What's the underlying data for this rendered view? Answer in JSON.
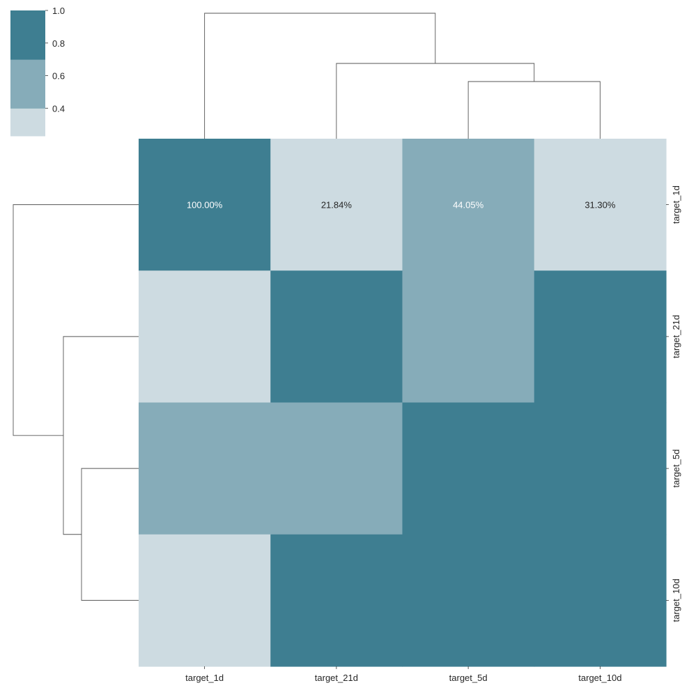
{
  "chart_data": {
    "type": "heatmap",
    "title": "",
    "xlabel": "",
    "ylabel": "",
    "x_categories": [
      "target_1d",
      "target_21d",
      "target_5d",
      "target_10d"
    ],
    "y_categories": [
      "target_1d",
      "target_21d",
      "target_5d",
      "target_10d"
    ],
    "values": [
      [
        1.0,
        0.2184,
        0.4405,
        0.313
      ],
      [
        0.2184,
        1.0,
        0.55,
        0.9
      ],
      [
        0.4405,
        0.55,
        1.0,
        0.9
      ],
      [
        0.313,
        0.9,
        0.9,
        1.0
      ]
    ],
    "cell_labels": [
      [
        "100.00%",
        "21.84%",
        "44.05%",
        "31.30%"
      ],
      [
        "",
        "",
        "",
        ""
      ],
      [
        "",
        "",
        "",
        ""
      ],
      [
        "",
        "",
        "",
        ""
      ]
    ],
    "colorbar": {
      "ticks": [
        "0.4",
        "0.6",
        "0.8",
        "1.0"
      ],
      "tick_values": [
        0.4,
        0.6,
        0.8,
        1.0
      ],
      "range": [
        0.23,
        1.0
      ],
      "bins": [
        {
          "min": 0.23,
          "max": 0.4,
          "color": "#cddbe1"
        },
        {
          "min": 0.4,
          "max": 0.7,
          "color": "#86acb9"
        },
        {
          "min": 0.7,
          "max": 1.0,
          "color": "#3e7e91"
        }
      ]
    },
    "dendrogram": "both",
    "colors": {
      "low": "#cddbe1",
      "mid": "#86acb9",
      "high": "#3e7e91",
      "dendrogram_line": "#555555",
      "label_on_dark": "#ffffff",
      "label_on_light": "#262626"
    }
  }
}
